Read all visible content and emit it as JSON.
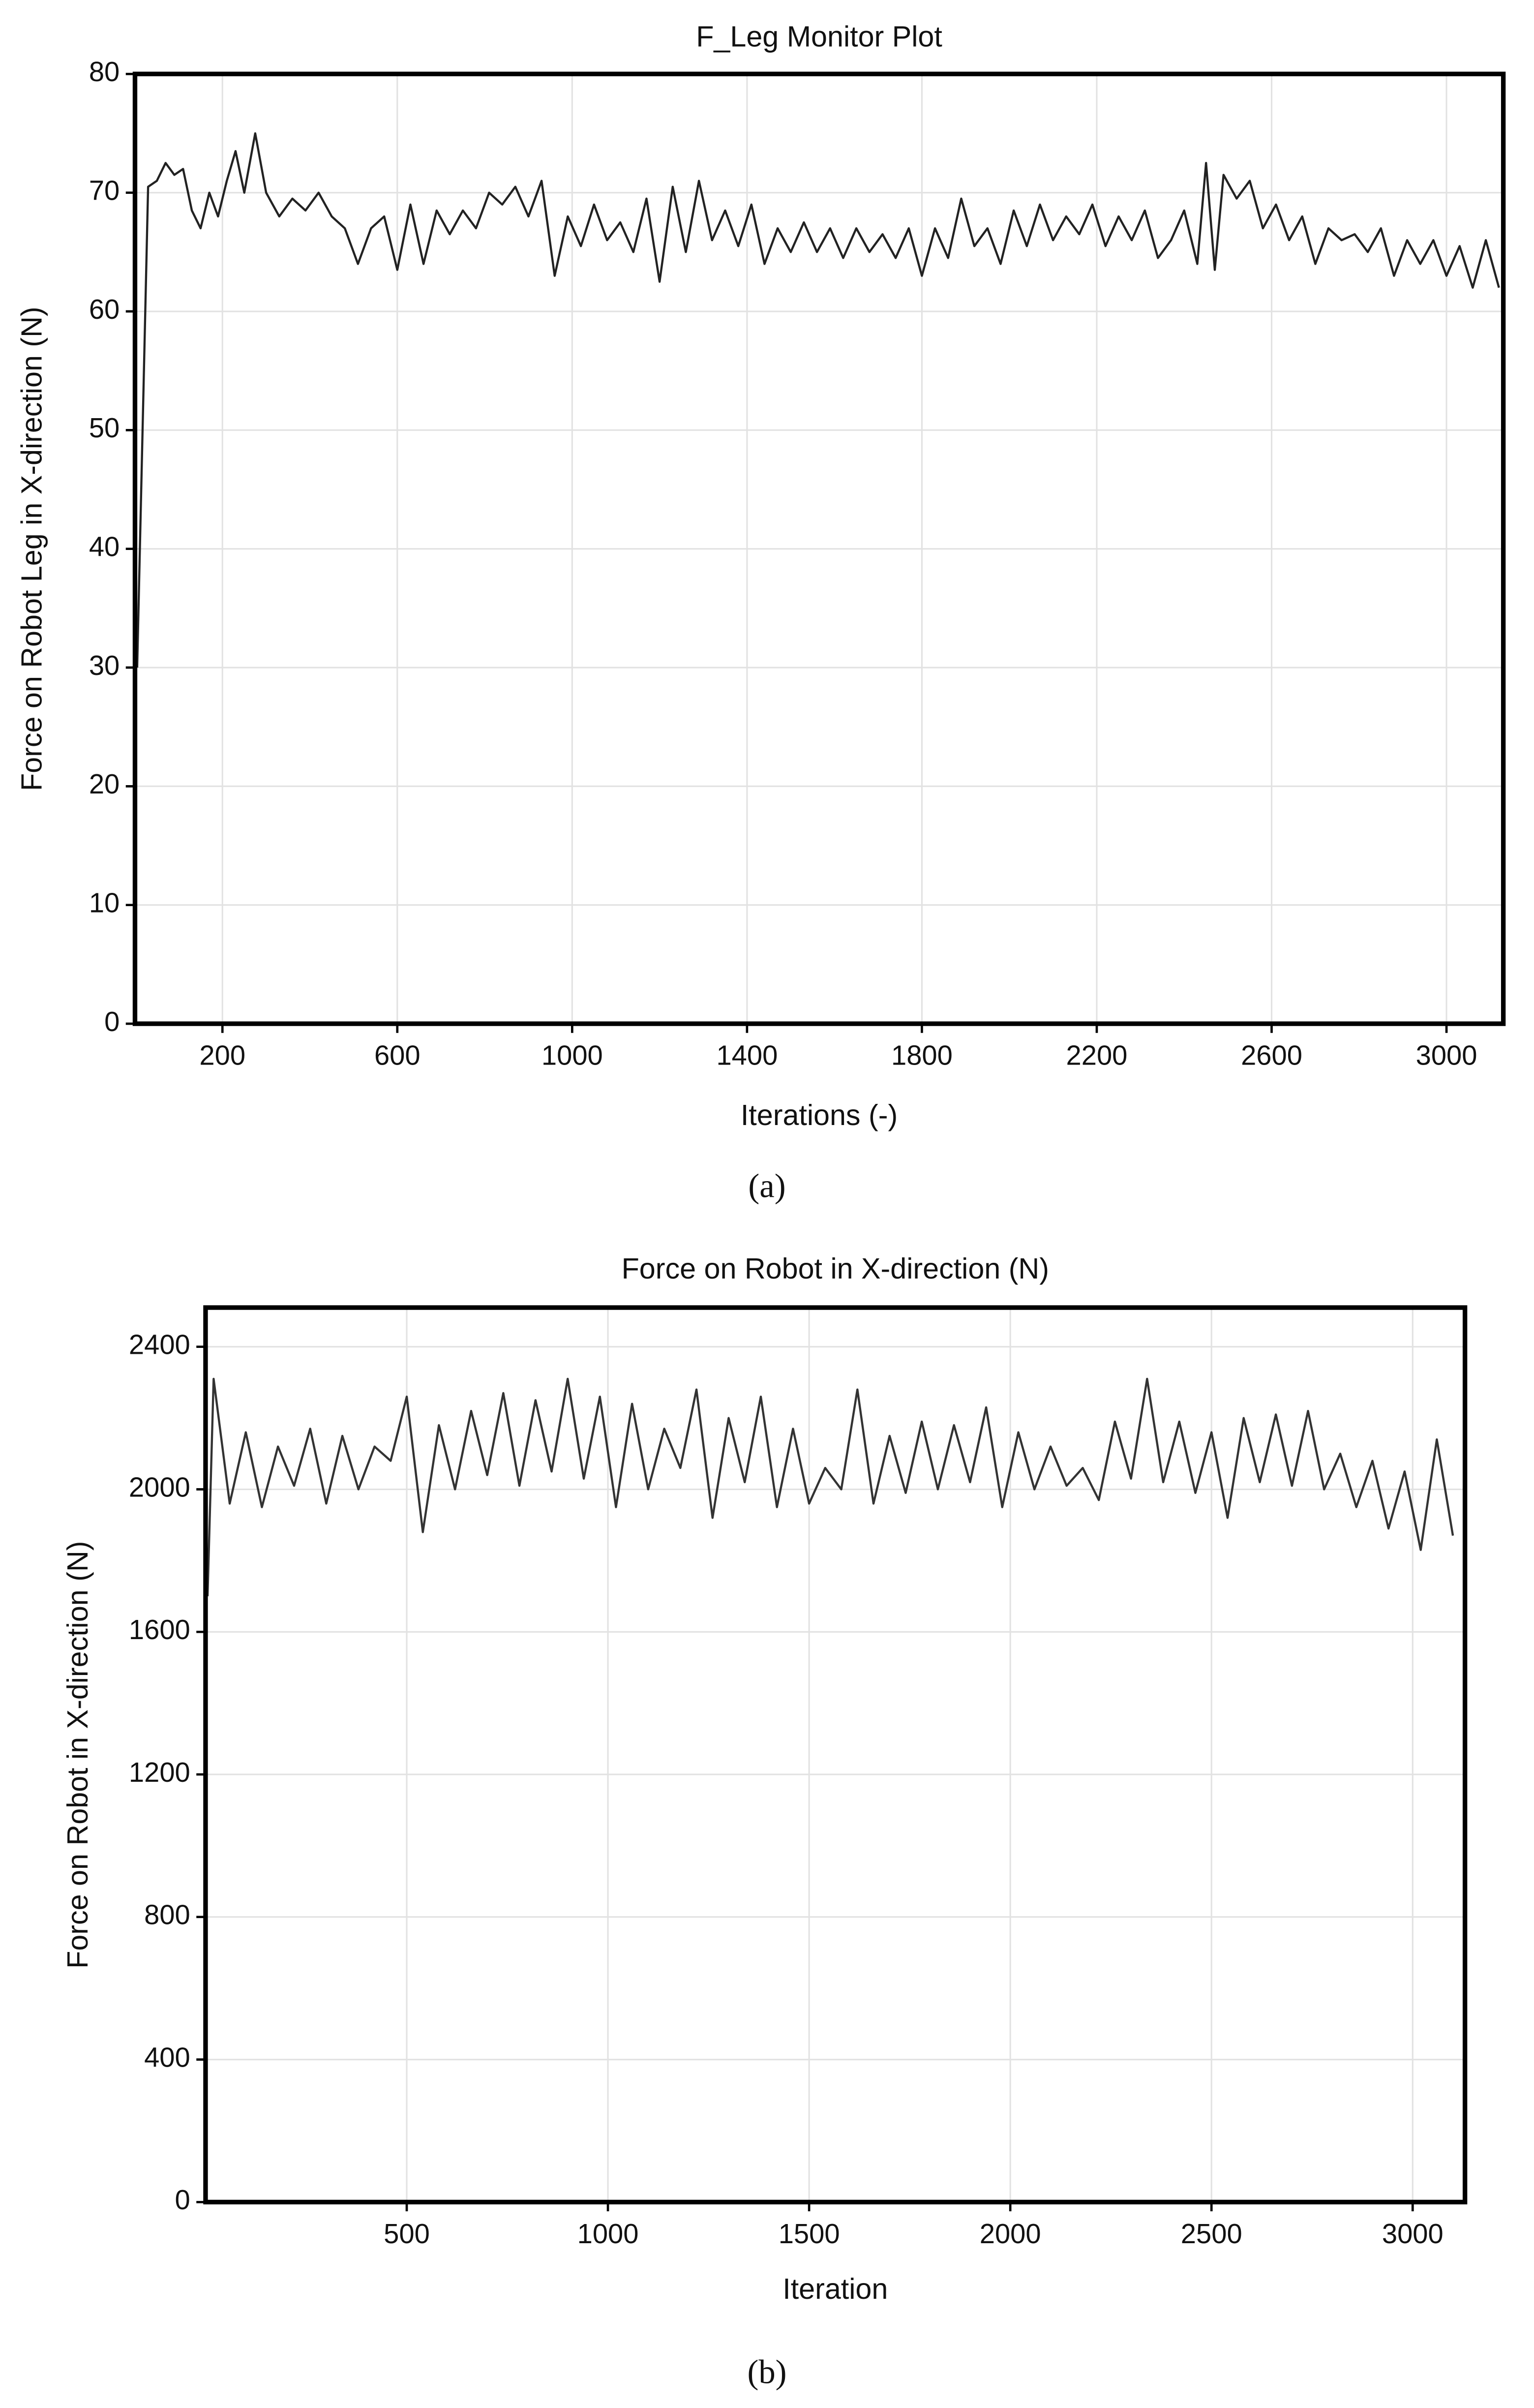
{
  "chart_data": [
    {
      "type": "line",
      "title": "F_Leg Monitor Plot",
      "xlabel": "Iterations (-)",
      "ylabel": "Force on Robot Leg in X-direction (N)",
      "caption": "(a)",
      "color": "#222222",
      "grid": true,
      "xlim": [
        0,
        3130
      ],
      "ylim": [
        0,
        80
      ],
      "xticks": [
        200,
        600,
        1000,
        1400,
        1800,
        2200,
        2600,
        3000
      ],
      "yticks": [
        0,
        10,
        20,
        30,
        40,
        50,
        60,
        70,
        80
      ],
      "x": [
        5,
        30,
        50,
        70,
        90,
        110,
        130,
        150,
        170,
        190,
        210,
        230,
        250,
        275,
        300,
        330,
        360,
        390,
        420,
        450,
        480,
        510,
        540,
        570,
        600,
        630,
        660,
        690,
        720,
        750,
        780,
        810,
        840,
        870,
        900,
        930,
        960,
        990,
        1020,
        1050,
        1080,
        1110,
        1140,
        1170,
        1200,
        1230,
        1260,
        1290,
        1320,
        1350,
        1380,
        1410,
        1440,
        1470,
        1500,
        1530,
        1560,
        1590,
        1620,
        1650,
        1680,
        1710,
        1740,
        1770,
        1800,
        1830,
        1860,
        1890,
        1920,
        1950,
        1980,
        2010,
        2040,
        2070,
        2100,
        2130,
        2160,
        2190,
        2220,
        2250,
        2280,
        2310,
        2340,
        2370,
        2400,
        2430,
        2450,
        2470,
        2490,
        2520,
        2550,
        2580,
        2610,
        2640,
        2670,
        2700,
        2730,
        2760,
        2790,
        2820,
        2850,
        2880,
        2910,
        2940,
        2970,
        3000,
        3030,
        3060,
        3090,
        3120
      ],
      "values": [
        30,
        70.5,
        71,
        72.5,
        71.5,
        72,
        68.5,
        67,
        70,
        68,
        71,
        73.5,
        70,
        75,
        70,
        68,
        69.5,
        68.5,
        70,
        68,
        67,
        64,
        67,
        68,
        63.5,
        69,
        64,
        68.5,
        66.5,
        68.5,
        67,
        70,
        69,
        70.5,
        68,
        71,
        63,
        68,
        65.5,
        69,
        66,
        67.5,
        65,
        69.5,
        62.5,
        70.5,
        65,
        71,
        66,
        68.5,
        65.5,
        69,
        64,
        67,
        65,
        67.5,
        65,
        67,
        64.5,
        67,
        65,
        66.5,
        64.5,
        67,
        63,
        67,
        64.5,
        69.5,
        65.5,
        67,
        64,
        68.5,
        65.5,
        69,
        66,
        68,
        66.5,
        69,
        65.5,
        68,
        66,
        68.5,
        64.5,
        66,
        68.5,
        64,
        72.5,
        63.5,
        71.5,
        69.5,
        71,
        67,
        69,
        66,
        68,
        64,
        67,
        66,
        66.5,
        65,
        67,
        63,
        66,
        64,
        66,
        63,
        65.5,
        62,
        66,
        62
      ]
    },
    {
      "type": "line",
      "title": "Force on Robot in X-direction (N)",
      "xlabel": "Iteration",
      "ylabel": "Force on Robot in X-direction (N)",
      "caption": "(b)",
      "color": "#333333",
      "grid": true,
      "xlim": [
        0,
        3130
      ],
      "ylim": [
        0,
        2510
      ],
      "xticks": [
        500,
        1000,
        1500,
        2000,
        2500,
        3000
      ],
      "yticks": [
        0,
        400,
        800,
        1200,
        1600,
        2000,
        2400
      ],
      "x": [
        5,
        20,
        60,
        100,
        140,
        180,
        220,
        260,
        300,
        340,
        380,
        420,
        460,
        500,
        540,
        580,
        620,
        660,
        700,
        740,
        780,
        820,
        860,
        900,
        940,
        980,
        1020,
        1060,
        1100,
        1140,
        1180,
        1220,
        1260,
        1300,
        1340,
        1380,
        1420,
        1460,
        1500,
        1540,
        1580,
        1620,
        1660,
        1700,
        1740,
        1780,
        1820,
        1860,
        1900,
        1940,
        1980,
        2020,
        2060,
        2100,
        2140,
        2180,
        2220,
        2260,
        2300,
        2340,
        2380,
        2420,
        2460,
        2500,
        2540,
        2580,
        2620,
        2660,
        2700,
        2740,
        2780,
        2820,
        2860,
        2900,
        2940,
        2980,
        3020,
        3060,
        3100
      ],
      "values": [
        1700,
        2310,
        1960,
        2160,
        1950,
        2120,
        2010,
        2170,
        1960,
        2150,
        2000,
        2120,
        2080,
        2260,
        1880,
        2180,
        2000,
        2220,
        2040,
        2270,
        2010,
        2250,
        2050,
        2310,
        2030,
        2260,
        1950,
        2240,
        2000,
        2170,
        2060,
        2280,
        1920,
        2200,
        2020,
        2260,
        1950,
        2170,
        1960,
        2060,
        2000,
        2280,
        1960,
        2150,
        1990,
        2190,
        2000,
        2180,
        2020,
        2230,
        1950,
        2160,
        2000,
        2120,
        2010,
        2060,
        1970,
        2190,
        2030,
        2310,
        2020,
        2190,
        1990,
        2160,
        1920,
        2200,
        2020,
        2210,
        2010,
        2220,
        2000,
        2100,
        1950,
        2080,
        1890,
        2050,
        1830,
        2140,
        1870
      ]
    }
  ]
}
